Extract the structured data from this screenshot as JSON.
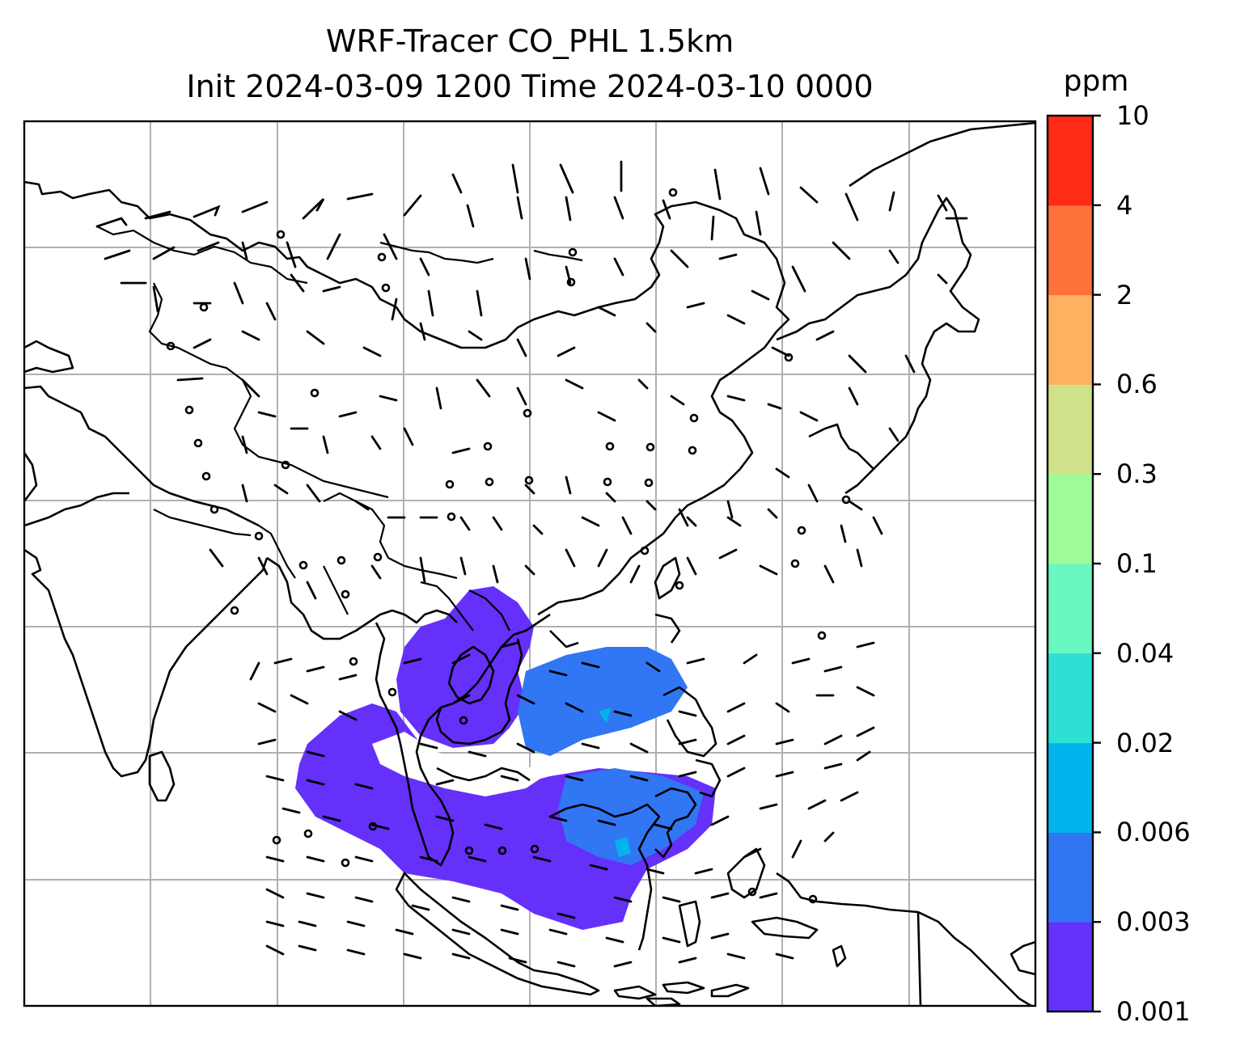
{
  "title": {
    "line1": "WRF-Tracer CO_PHL 1.5km",
    "line2": "Init 2024-03-09 1200 Time 2024-03-10 0000"
  },
  "colorbar": {
    "unit": "ppm",
    "levels": [
      "0.001",
      "0.003",
      "0.006",
      "0.02",
      "0.04",
      "0.1",
      "0.3",
      "0.6",
      "2",
      "4",
      "10"
    ],
    "colors": [
      "#6530fa",
      "#3176f3",
      "#02b4ec",
      "#2edfd4",
      "#69f8bf",
      "#9dfb9a",
      "#cfe28a",
      "#ffb060",
      "#ff713a",
      "#ff2b15"
    ]
  },
  "map": {
    "gridline_color": "#b0b0b0",
    "coastline_color": "#000000",
    "tracer_field_colors": [
      "#6530fa",
      "#3176f3",
      "#02b4ec"
    ],
    "wind_barbs": "black"
  }
}
